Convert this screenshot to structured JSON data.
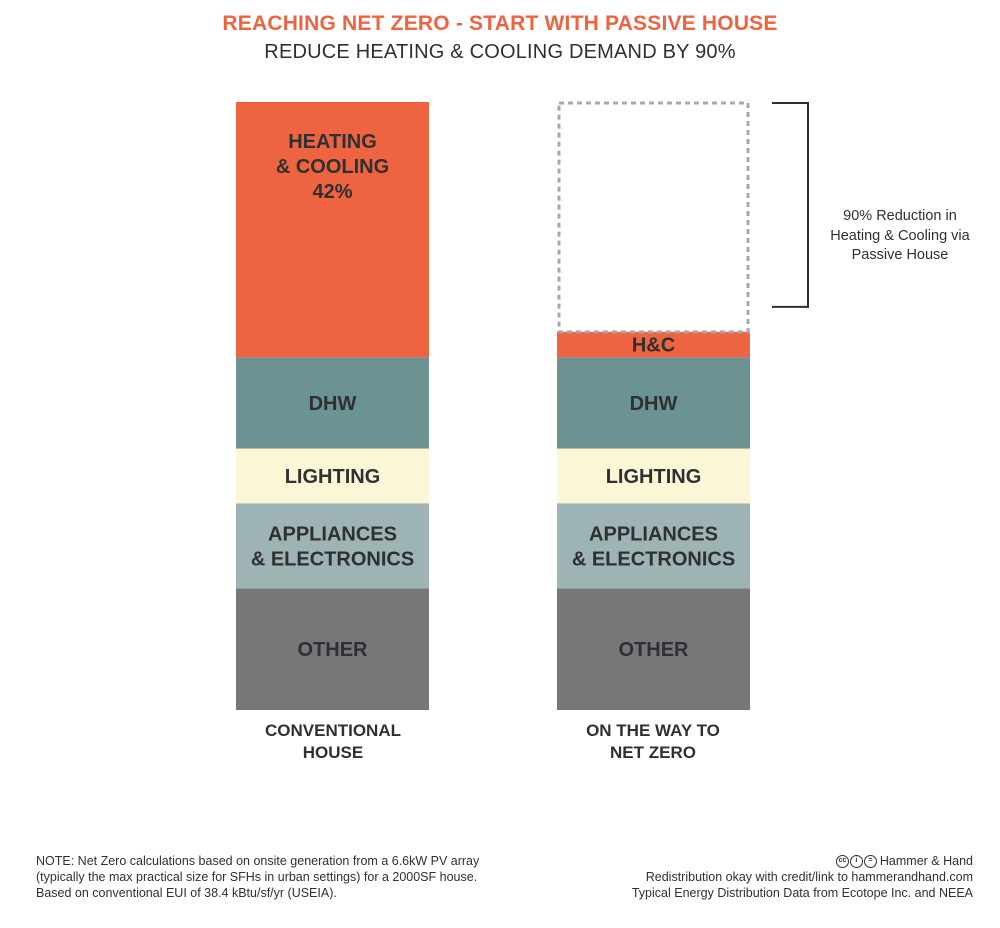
{
  "title": "REACHING NET ZERO - START WITH PASSIVE HOUSE",
  "subtitle": "REDUCE HEATING & COOLING DEMAND BY 90%",
  "colors": {
    "accent": "#ee6440",
    "dhw": "#6b9394",
    "lighting": "#fbf6d6",
    "appliances": "#9db3b4",
    "other": "#77777a",
    "text": "#2f3033"
  },
  "chart_data": {
    "type": "bar",
    "stacked": true,
    "categories": [
      "CONVENTIONAL HOUSE",
      "ON THE WAY TO NET ZERO"
    ],
    "category_lines": [
      [
        "CONVENTIONAL",
        "HOUSE"
      ],
      [
        "ON THE WAY TO",
        "NET ZERO"
      ]
    ],
    "series": [
      {
        "name": "OTHER",
        "lines": [
          "OTHER"
        ],
        "color": "#77777a",
        "values": [
          20,
          20
        ]
      },
      {
        "name": "APPLIANCES & ELECTRONICS",
        "lines": [
          "APPLIANCES",
          "& ELECTRONICS"
        ],
        "color": "#9db3b4",
        "values": [
          14,
          14
        ]
      },
      {
        "name": "LIGHTING",
        "lines": [
          "LIGHTING"
        ],
        "color": "#fbf6d6",
        "values": [
          9,
          9
        ]
      },
      {
        "name": "DHW",
        "lines": [
          "DHW"
        ],
        "color": "#6b9394",
        "values": [
          15,
          15
        ]
      },
      {
        "name": "HEATING & COOLING",
        "lines": [
          "HEATING",
          "& COOLING",
          "42%"
        ],
        "short_lines": [
          "H&C"
        ],
        "color": "#ee6440",
        "values": [
          42,
          4.2
        ]
      }
    ],
    "removed": {
      "values": [
        0,
        37.8
      ],
      "style": "dashed-outline"
    },
    "ylim": [
      0,
      100
    ]
  },
  "annotation": {
    "lines": [
      "90% Reduction in",
      "Heating & Cooling via",
      "Passive House"
    ]
  },
  "note": {
    "lines": [
      "NOTE: Net Zero calculations based on onsite generation from a 6.6kW PV array",
      "(typically the max practical size for SFHs in urban settings) for a 2000SF house.",
      "Based on conventional EUI of 38.4 kBtu/sf/yr (USEIA)."
    ]
  },
  "credits": {
    "brand": "Hammer & Hand",
    "icons": [
      "cc-icon",
      "by-icon",
      "nd-icon"
    ],
    "lines": [
      "Redistribution okay with credit/link to hammerandhand.com",
      "Typical Energy Distribution Data from Ecotope Inc. and NEEA"
    ]
  }
}
